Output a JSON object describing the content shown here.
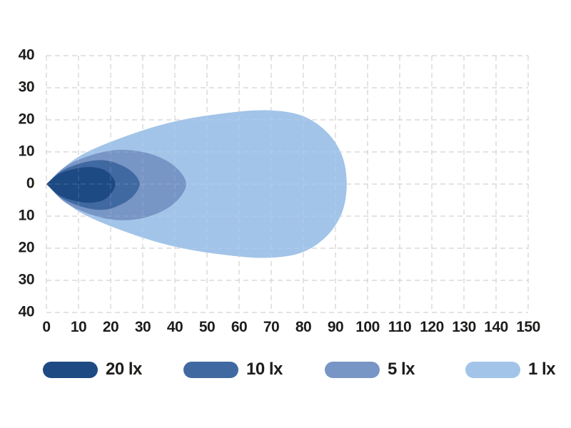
{
  "chart_data": {
    "type": "area",
    "subtype": "isolux-light-distribution",
    "title": "",
    "xlabel": "",
    "ylabel": "",
    "x_range": [
      0,
      150
    ],
    "y_range": [
      -40,
      40
    ],
    "x_ticks": [
      "0",
      "10",
      "20",
      "30",
      "40",
      "50",
      "60",
      "70",
      "80",
      "90",
      "100",
      "110",
      "120",
      "130",
      "140",
      "150"
    ],
    "y_ticks": [
      "40",
      "30",
      "20",
      "10",
      "0",
      "10",
      "20",
      "30",
      "40"
    ],
    "grid": {
      "style": "dashed",
      "color": "#cccccc"
    },
    "legend_position": "bottom",
    "series": [
      {
        "name": "20lx",
        "label": "20 lx",
        "lux": 20,
        "color": "#1d4a83",
        "x_max": 21.5,
        "y_half_max": 5.2,
        "bottom_scale": 1.1,
        "top_outline": [
          [
            0,
            0
          ],
          [
            4,
            3.2
          ],
          [
            10,
            5.0
          ],
          [
            15,
            5.2
          ],
          [
            19,
            3.8
          ],
          [
            21.5,
            0
          ]
        ]
      },
      {
        "name": "10lx",
        "label": "10 lx",
        "lux": 10,
        "color": "#4169a1",
        "x_max": 29,
        "y_half_max": 7.4,
        "bottom_scale": 1.08,
        "top_outline": [
          [
            0,
            0
          ],
          [
            5,
            4.2
          ],
          [
            12,
            6.8
          ],
          [
            18,
            7.4
          ],
          [
            23,
            6.0
          ],
          [
            27,
            3.5
          ],
          [
            29,
            0
          ]
        ]
      },
      {
        "name": "5lx",
        "label": "5 lx",
        "lux": 5,
        "color": "#7795c5",
        "x_max": 43.5,
        "y_half_max": 10.6,
        "bottom_scale": 1.06,
        "top_outline": [
          [
            0,
            0
          ],
          [
            6,
            5.5
          ],
          [
            14,
            9.0
          ],
          [
            22,
            10.6
          ],
          [
            30,
            10.0
          ],
          [
            37,
            7.5
          ],
          [
            41.5,
            4.0
          ],
          [
            43.5,
            0
          ]
        ]
      },
      {
        "name": "1lx",
        "label": "1 lx",
        "lux": 1,
        "color": "#a2c4e8",
        "x_max": 93.5,
        "y_half_max": 23,
        "bottom_scale": 1.0,
        "top_outline": [
          [
            0,
            0
          ],
          [
            10,
            8.5
          ],
          [
            25,
            15.0
          ],
          [
            40,
            19.5
          ],
          [
            55,
            22.0
          ],
          [
            68,
            23.0
          ],
          [
            79,
            21.5
          ],
          [
            87,
            16.5
          ],
          [
            92,
            9.0
          ],
          [
            93.5,
            0
          ]
        ]
      }
    ]
  },
  "legend": {
    "items": [
      {
        "label": "20 lx",
        "color": "#1d4a83"
      },
      {
        "label": "10 lx",
        "color": "#4169a1"
      },
      {
        "label": "5 lx",
        "color": "#7795c5"
      },
      {
        "label": "1 lx",
        "color": "#a2c4e8"
      }
    ]
  }
}
